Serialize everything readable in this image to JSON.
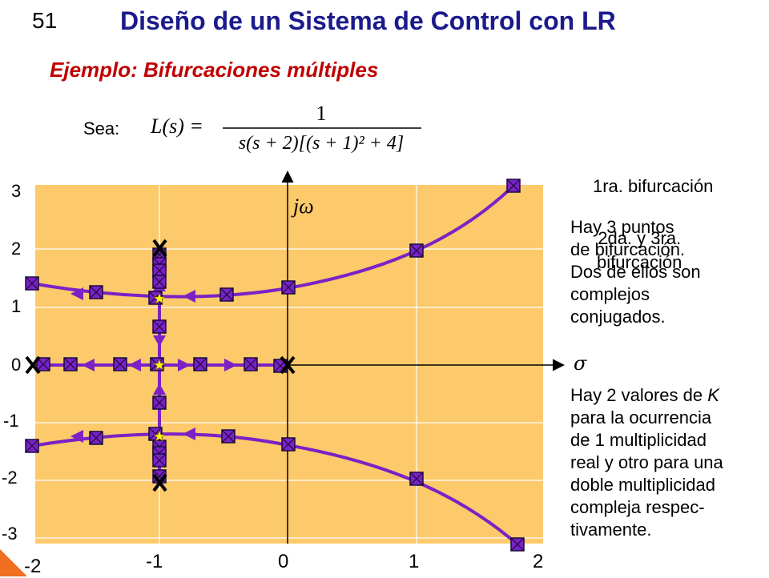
{
  "slide_number": "51",
  "title": "Diseño de un Sistema de Control con LR",
  "subtitle": "Ejemplo: Bifurcaciones múltiples",
  "sea_label": "Sea:",
  "formula": {
    "lhs": "L(s) =",
    "numerator": "1",
    "denominator": "s(s + 2)[(s + 1)² + 4]"
  },
  "axes": {
    "imag_label": "jω",
    "real_label": "σ",
    "y_ticks": [
      "3",
      "2",
      "1",
      "0",
      "-1",
      "-2",
      "-3"
    ],
    "x_ticks": [
      "-2",
      "-1",
      "0",
      "1",
      "2"
    ]
  },
  "labels": {
    "first_bifurcation": "1ra. bifurcación",
    "second_third_bifurcation": "2da. y 3ra.\nbifurcación"
  },
  "notes": {
    "note1": "Hay 3 puntos\nde bifurcación.\nDos de ellos son\ncomplejos\nconjugados.",
    "note2_before_k": "Hay 2 valores de ",
    "note2_k": "K",
    "note2_after_k": "\npara la ocurrencia\nde 1 multiplicidad\nreal y otro para una\ndoble multiplicidad\ncompleja respec-\ntivamente."
  },
  "colors": {
    "plot_background": "#fcc96b",
    "locus_line": "#7a22c6",
    "marker_fill": "#7a22c6",
    "marker_edge": "#1a0a3a",
    "pole_mark": "#000000",
    "breakaway_star": "#ffff00",
    "title_color": "#1b1b8c",
    "subtitle_color": "#c00000"
  },
  "root_locus": {
    "open_loop_poles": [
      [
        0,
        0
      ],
      [
        -2,
        0
      ],
      [
        -1,
        2
      ],
      [
        -1,
        -2
      ]
    ],
    "breakaway_points": [
      [
        -1,
        0
      ],
      [
        -1,
        1.22
      ],
      [
        -1,
        -1.22
      ]
    ],
    "branches_note": "4 branches; real-axis segment between -2 and 0"
  }
}
